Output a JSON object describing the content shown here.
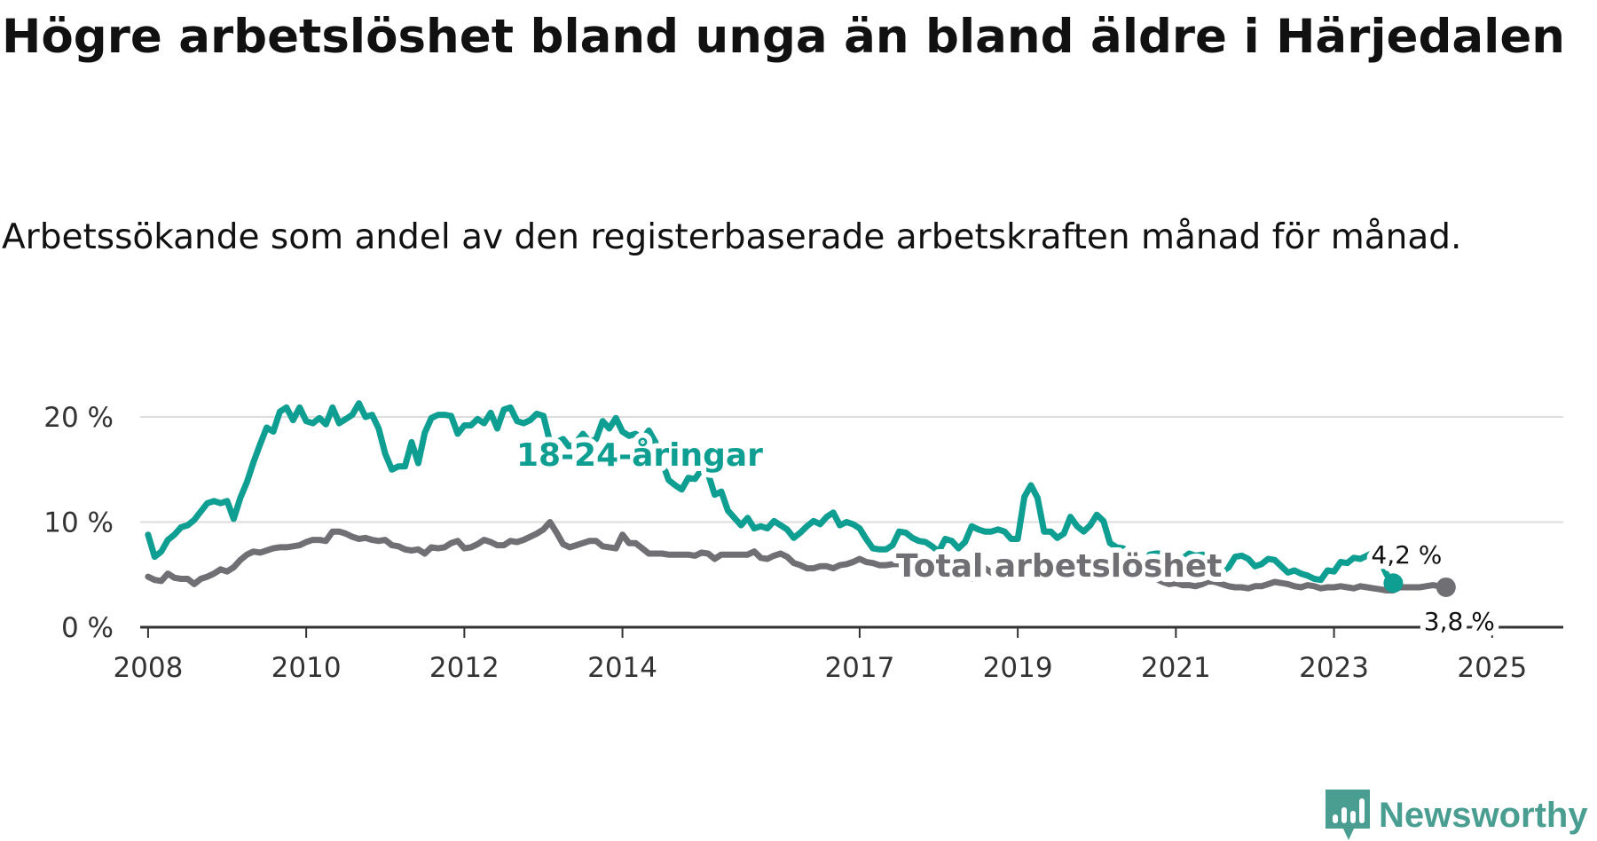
{
  "chart_data": {
    "type": "line",
    "title": "Högre arbetslöshet bland unga än bland äldre i Härjedalen",
    "subtitle": "Arbetssökande som andel av den registerbaserade arbetskraften månad för månad.",
    "xlabel": "",
    "ylabel": "",
    "xlim": [
      2007.9,
      2025.9
    ],
    "ylim": [
      0,
      21
    ],
    "y_ticks": [
      {
        "value": 0,
        "label": "0 %"
      },
      {
        "value": 10,
        "label": "10 %"
      },
      {
        "value": 20,
        "label": "20 %"
      }
    ],
    "x_ticks": [
      {
        "value": 2008,
        "label": "2008"
      },
      {
        "value": 2010,
        "label": "2010"
      },
      {
        "value": 2012,
        "label": "2012"
      },
      {
        "value": 2014,
        "label": "2014"
      },
      {
        "value": 2017,
        "label": "2017"
      },
      {
        "value": 2019,
        "label": "2019"
      },
      {
        "value": 2021,
        "label": "2021"
      },
      {
        "value": 2023,
        "label": "2023"
      },
      {
        "value": 2025,
        "label": "2025"
      }
    ],
    "grid": true,
    "x_start": 2008.0,
    "x_step": 0.0833333,
    "series": [
      {
        "name": "18-24-åringar",
        "label": "18-24-åringar",
        "color": "#0f9e92",
        "end_value_label": "4,2 %",
        "values": [
          8.8,
          6.7,
          7.2,
          8.3,
          8.8,
          9.5,
          9.7,
          10.2,
          11.0,
          11.8,
          12.0,
          11.8,
          12.0,
          10.3,
          12.3,
          13.8,
          15.7,
          17.4,
          19.0,
          18.6,
          20.5,
          20.9,
          19.7,
          20.9,
          19.6,
          19.4,
          19.9,
          19.3,
          20.9,
          19.4,
          19.8,
          20.2,
          21.3,
          20.0,
          20.2,
          18.9,
          16.5,
          15.0,
          15.3,
          15.3,
          17.6,
          15.6,
          18.5,
          19.9,
          20.2,
          20.2,
          20.1,
          18.4,
          19.2,
          19.2,
          19.8,
          19.4,
          20.4,
          18.9,
          20.7,
          20.9,
          19.6,
          19.4,
          19.7,
          20.3,
          20.1,
          17.6,
          17.6,
          17.9,
          17.1,
          17.6,
          18.4,
          17.6,
          17.9,
          19.6,
          18.9,
          19.9,
          18.6,
          18.2,
          18.4,
          17.9,
          18.7,
          17.6,
          15.8,
          14.0,
          13.5,
          13.1,
          14.2,
          14.1,
          15.0,
          14.6,
          12.6,
          12.9,
          11.1,
          10.4,
          9.7,
          10.4,
          9.4,
          9.6,
          9.4,
          10.1,
          9.7,
          9.3,
          8.5,
          9.0,
          9.6,
          10.1,
          9.8,
          10.5,
          10.9,
          9.7,
          10.0,
          9.8,
          9.4,
          8.4,
          7.5,
          7.4,
          7.4,
          7.8,
          9.1,
          9.0,
          8.5,
          8.2,
          8.1,
          7.7,
          7.2,
          8.4,
          8.2,
          7.5,
          8.1,
          9.6,
          9.3,
          9.1,
          9.1,
          9.3,
          9.1,
          8.4,
          8.4,
          12.4,
          13.5,
          12.3,
          9.1,
          9.1,
          8.5,
          8.9,
          10.5,
          9.6,
          9.1,
          9.7,
          10.7,
          10.1,
          8.0,
          7.6,
          7.5,
          5.8,
          5.6,
          5.7,
          6.9,
          7.0,
          7.0,
          5.8,
          5.5,
          6.5,
          7.0,
          6.8,
          6.9,
          5.5,
          5.1,
          5.3,
          5.7,
          6.7,
          6.8,
          6.5,
          5.8,
          6.0,
          6.5,
          6.4,
          5.8,
          5.2,
          5.4,
          5.1,
          4.9,
          4.6,
          4.5,
          5.4,
          5.3,
          6.2,
          6.1,
          6.6,
          6.5,
          6.8,
          7.1,
          6.3,
          5.0,
          4.2
        ]
      },
      {
        "name": "Total arbetslöshet",
        "label": "Total arbetslöshet",
        "color": "#707074",
        "end_value_label": "3,8 %",
        "values": [
          4.8,
          4.5,
          4.4,
          5.1,
          4.7,
          4.6,
          4.6,
          4.1,
          4.6,
          4.8,
          5.1,
          5.5,
          5.3,
          5.7,
          6.4,
          6.9,
          7.2,
          7.1,
          7.3,
          7.5,
          7.6,
          7.6,
          7.7,
          7.8,
          8.1,
          8.3,
          8.3,
          8.2,
          9.1,
          9.1,
          8.9,
          8.6,
          8.4,
          8.5,
          8.3,
          8.2,
          8.3,
          7.8,
          7.7,
          7.4,
          7.3,
          7.4,
          7.0,
          7.6,
          7.5,
          7.6,
          8.0,
          8.2,
          7.5,
          7.6,
          7.9,
          8.3,
          8.1,
          7.8,
          7.8,
          8.2,
          8.1,
          8.3,
          8.6,
          8.9,
          9.3,
          10.0,
          9.0,
          7.9,
          7.6,
          7.8,
          8.0,
          8.2,
          8.2,
          7.7,
          7.6,
          7.5,
          8.8,
          8.0,
          8.0,
          7.5,
          7.0,
          7.0,
          7.0,
          6.9,
          6.9,
          6.9,
          6.9,
          6.8,
          7.1,
          7.0,
          6.5,
          6.9,
          6.9,
          6.9,
          6.9,
          6.9,
          7.2,
          6.6,
          6.5,
          6.8,
          7.0,
          6.7,
          6.1,
          5.9,
          5.6,
          5.6,
          5.8,
          5.8,
          5.6,
          5.9,
          6.0,
          6.2,
          6.5,
          6.2,
          6.1,
          5.9,
          5.9,
          6.0,
          6.0,
          5.5,
          5.3,
          5.3,
          5.4,
          5.3,
          5.2,
          5.0,
          4.9,
          4.8,
          4.6,
          4.6,
          5.1,
          5.6,
          5.2,
          5.6,
          5.2,
          5.1,
          5.2,
          5.5,
          5.7,
          5.6,
          5.3,
          5.1,
          5.0,
          4.8,
          4.6,
          4.8,
          5.1,
          5.4,
          5.3,
          5.3,
          5.5,
          5.6,
          5.3,
          5.1,
          5.1,
          4.9,
          4.7,
          4.6,
          4.3,
          4.1,
          4.2,
          4.0,
          4.0,
          3.9,
          4.1,
          4.4,
          4.3,
          4.1,
          3.9,
          3.8,
          3.8,
          3.7,
          3.9,
          3.9,
          4.1,
          4.3,
          4.2,
          4.1,
          3.9,
          3.8,
          4.0,
          3.9,
          3.7,
          3.8,
          3.8,
          3.9,
          3.8,
          3.7,
          3.9,
          3.8,
          3.7,
          3.6,
          3.5,
          3.5,
          3.8,
          3.8,
          3.8,
          3.8,
          3.9,
          4.0,
          3.9,
          3.8
        ]
      }
    ]
  },
  "branding": {
    "name": "Newsworthy",
    "logo_color": "#4a9e91"
  }
}
